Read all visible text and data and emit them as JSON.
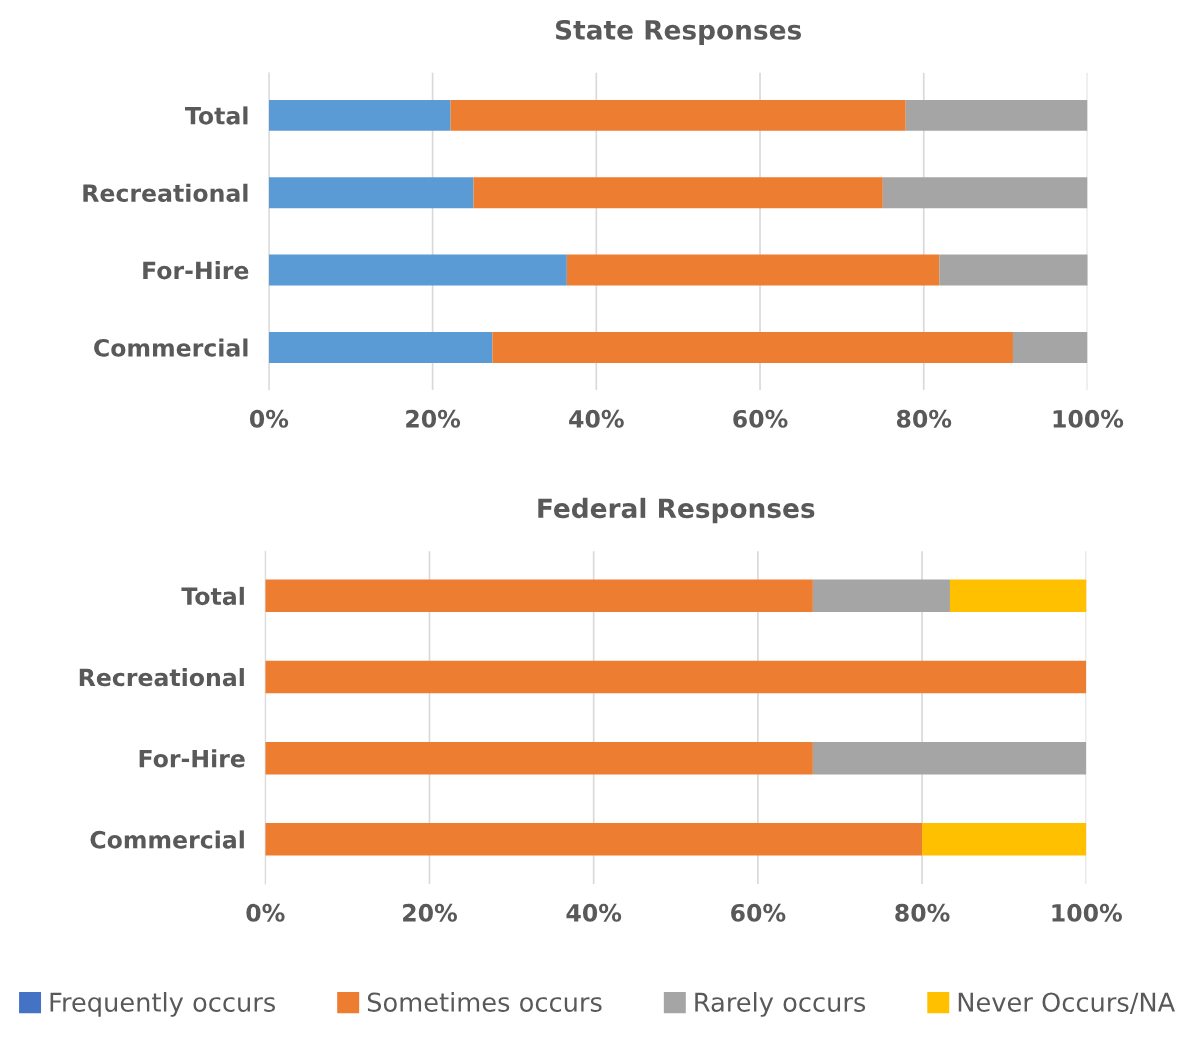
{
  "chart_data": [
    {
      "type": "bar",
      "orientation": "horizontal",
      "stacked": true,
      "title": "State Responses",
      "categories": [
        "Total",
        "Recreational",
        "For-Hire",
        "Commercial"
      ],
      "xlim": [
        0,
        100
      ],
      "xticks": [
        {
          "value": 0,
          "label": "0%"
        },
        {
          "value": 20,
          "label": "20%"
        },
        {
          "value": 40,
          "label": "40%"
        },
        {
          "value": 60,
          "label": "60%"
        },
        {
          "value": 80,
          "label": "80%"
        },
        {
          "value": 100,
          "label": "100%"
        }
      ],
      "grid": "x",
      "legend": false,
      "series": [
        {
          "color": "#5b9bd5",
          "values": [
            22.2,
            25.0,
            36.4,
            27.3
          ]
        },
        {
          "color": "#ed7d31",
          "values": [
            55.6,
            50.0,
            45.5,
            63.6
          ]
        },
        {
          "color": "#a5a5a5",
          "values": [
            22.2,
            25.0,
            18.2,
            9.1
          ]
        },
        {
          "color": "#ffc000",
          "values": [
            0,
            0,
            0,
            0
          ]
        }
      ]
    },
    {
      "type": "bar",
      "orientation": "horizontal",
      "stacked": true,
      "title": "Federal Responses",
      "categories": [
        "Total",
        "Recreational",
        "For-Hire",
        "Commercial"
      ],
      "xlim": [
        0,
        100
      ],
      "xticks": [
        {
          "value": 0,
          "label": "0%"
        },
        {
          "value": 20,
          "label": "20%"
        },
        {
          "value": 40,
          "label": "40%"
        },
        {
          "value": 60,
          "label": "60%"
        },
        {
          "value": 80,
          "label": "80%"
        },
        {
          "value": 100,
          "label": "100%"
        }
      ],
      "grid": "x",
      "legend": "bottom",
      "series": [
        {
          "name": "Frequently occurs",
          "color": "#4472c4",
          "values": [
            0,
            0,
            0,
            0
          ]
        },
        {
          "name": "Sometimes occurs",
          "color": "#ed7d31",
          "values": [
            66.7,
            100,
            66.7,
            80
          ]
        },
        {
          "name": "Rarely occurs",
          "color": "#a5a5a5",
          "values": [
            16.7,
            0,
            33.3,
            0
          ]
        },
        {
          "name": "Never Occurs/NA",
          "color": "#ffc000",
          "values": [
            16.7,
            0,
            0,
            20
          ]
        }
      ]
    }
  ]
}
